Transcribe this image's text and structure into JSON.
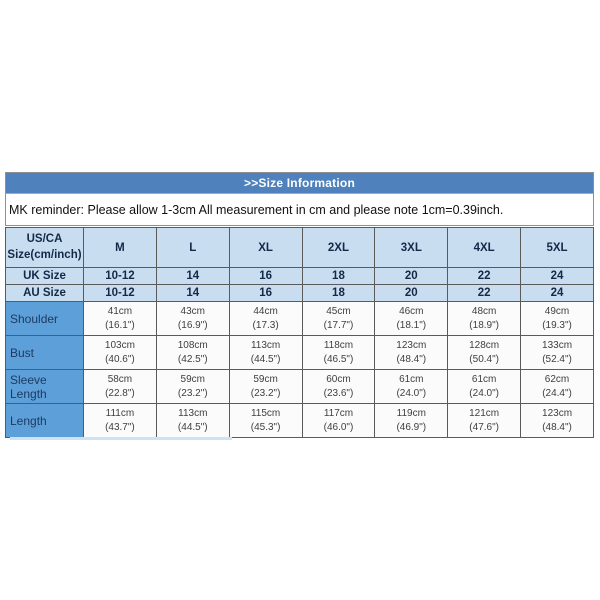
{
  "colors": {
    "title_bar_blue": "#4f81bd",
    "header_cell_blue": "#c9ddf1",
    "label_cell_blue": "#5d9fd8",
    "grid_border": "#5a5a5a"
  },
  "title_bar": {
    "label": ">>Size Information"
  },
  "reminder": {
    "text": "MK reminder: Please allow 1-3cm All measurement in cm and please note 1cm=0.39inch."
  },
  "table": {
    "corner_header": "US/CA\nSize(cm/inch)",
    "size_columns": [
      "M",
      "L",
      "XL",
      "2XL",
      "3XL",
      "4XL",
      "5XL"
    ],
    "uk_row": {
      "label": "UK Size",
      "values": [
        "10-12",
        "14",
        "16",
        "18",
        "20",
        "22",
        "24"
      ]
    },
    "au_row": {
      "label": "AU Size",
      "values": [
        "10-12",
        "14",
        "16",
        "18",
        "20",
        "22",
        "24"
      ]
    },
    "measurement_rows": [
      {
        "label": "Shoulder",
        "cm": [
          "41cm",
          "43cm",
          "44cm",
          "45cm",
          "46cm",
          "48cm",
          "49cm"
        ],
        "inch": [
          "(16.1\")",
          "(16.9\")",
          "(17.3)",
          "(17.7\")",
          "(18.1\")",
          "(18.9\")",
          "(19.3\")"
        ]
      },
      {
        "label": "Bust",
        "cm": [
          "103cm",
          "108cm",
          "113cm",
          "118cm",
          "123cm",
          "128cm",
          "133cm"
        ],
        "inch": [
          "(40.6\")",
          "(42.5\")",
          "(44.5\")",
          "(46.5\")",
          "(48.4\")",
          "(50.4\")",
          "(52.4\")"
        ]
      },
      {
        "label": "Sleeve Length",
        "cm": [
          "58cm",
          "59cm",
          "59cm",
          "60cm",
          "61cm",
          "61cm",
          "62cm"
        ],
        "inch": [
          "(22.8\")",
          "(23.2\")",
          "(23.2\")",
          "(23.6\")",
          "(24.0\")",
          "(24.0\")",
          "(24.4\")"
        ]
      },
      {
        "label": "Length",
        "cm": [
          "111cm",
          "113cm",
          "115cm",
          "117cm",
          "119cm",
          "121cm",
          "123cm"
        ],
        "inch": [
          "(43.7\")",
          "(44.5\")",
          "(45.3\")",
          "(46.0\")",
          "(46.9\")",
          "(47.6\")",
          "(48.4\")"
        ]
      }
    ]
  }
}
